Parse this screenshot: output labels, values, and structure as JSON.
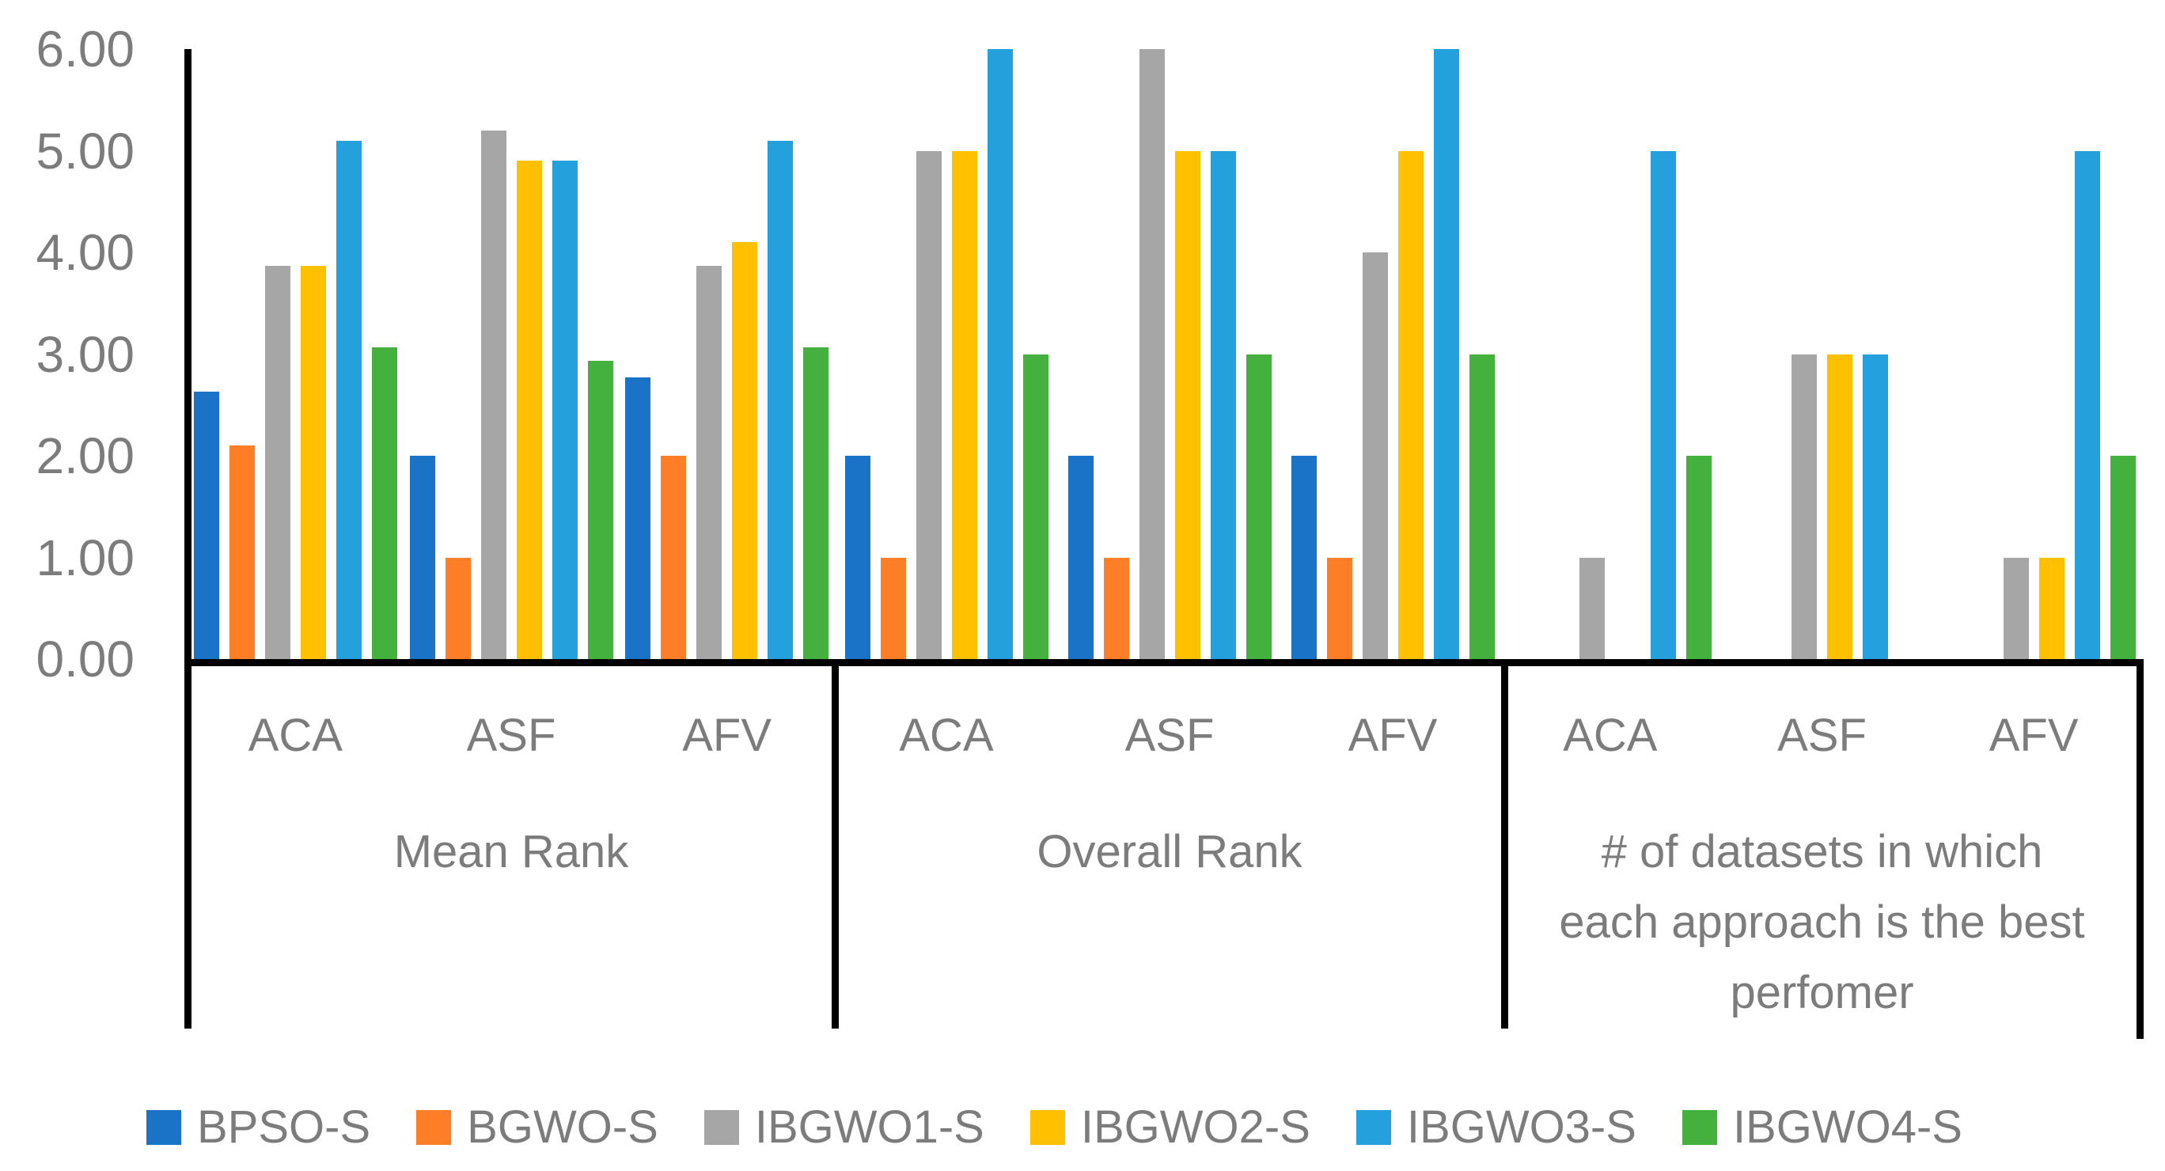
{
  "chart_data": {
    "type": "bar",
    "title": "",
    "grid": false,
    "legend_position": "bottom",
    "y_axis": {
      "min": 0,
      "max": 6,
      "tick_values": [
        6,
        5,
        4,
        3,
        2,
        1,
        0
      ],
      "tick_labels": [
        "6.00",
        "5.00",
        "4.00",
        "3.00",
        "2.00",
        "1.00",
        "0.00"
      ]
    },
    "series_colors": {
      "BPSO-S": "#1b73c8",
      "BGWO-S": "#fd7e26",
      "IBGWO1-S": "#a6a6a6",
      "IBGWO2-S": "#ffc000",
      "IBGWO3-S": "#24a0dc",
      "IBGWO4-S": "#44b13e"
    },
    "legend": [
      {
        "label": "BPSO-S",
        "color": "#1b73c8"
      },
      {
        "label": "BGWO-S",
        "color": "#fd7e26"
      },
      {
        "label": "IBGWO1-S",
        "color": "#a6a6a6"
      },
      {
        "label": "IBGWO2-S",
        "color": "#ffc000"
      },
      {
        "label": "IBGWO3-S",
        "color": "#24a0dc"
      },
      {
        "label": "IBGWO4-S",
        "color": "#44b13e"
      }
    ],
    "panels": [
      {
        "group_label": "Mean Rank",
        "caption_lines": [
          "Mean Rank"
        ],
        "categories": [
          "ACA",
          "ASF",
          "AFV"
        ],
        "series": [
          {
            "name": "BPSO-S",
            "values": [
              2.63,
              2.0,
              2.77
            ]
          },
          {
            "name": "BGWO-S",
            "values": [
              2.1,
              1.0,
              2.0
            ]
          },
          {
            "name": "IBGWO1-S",
            "values": [
              3.87,
              5.2,
              3.87
            ]
          },
          {
            "name": "IBGWO2-S",
            "values": [
              3.87,
              4.9,
              4.1
            ]
          },
          {
            "name": "IBGWO3-S",
            "values": [
              5.1,
              4.9,
              5.1
            ]
          },
          {
            "name": "IBGWO4-S",
            "values": [
              3.07,
              2.93,
              3.07
            ]
          }
        ]
      },
      {
        "group_label": "Overall Rank",
        "caption_lines": [
          "Overall Rank"
        ],
        "categories": [
          "ACA",
          "ASF",
          "AFV"
        ],
        "series": [
          {
            "name": "BPSO-S",
            "values": [
              2,
              2,
              2
            ]
          },
          {
            "name": "BGWO-S",
            "values": [
              1,
              1,
              1
            ]
          },
          {
            "name": "IBGWO1-S",
            "values": [
              5,
              6,
              4
            ]
          },
          {
            "name": "IBGWO2-S",
            "values": [
              5,
              5,
              5
            ]
          },
          {
            "name": "IBGWO3-S",
            "values": [
              6,
              5,
              6
            ]
          },
          {
            "name": "IBGWO4-S",
            "values": [
              3,
              3,
              3
            ]
          }
        ]
      },
      {
        "group_label": "# of datasets in which each approach is the best perfomer",
        "caption_lines": [
          "# of datasets in which",
          "each approach is the best",
          "perfomer"
        ],
        "categories": [
          "ACA",
          "ASF",
          "AFV"
        ],
        "series": [
          {
            "name": "BPSO-S",
            "values": [
              0,
              0,
              0
            ]
          },
          {
            "name": "BGWO-S",
            "values": [
              0,
              0,
              0
            ]
          },
          {
            "name": "IBGWO1-S",
            "values": [
              1,
              3,
              1
            ]
          },
          {
            "name": "IBGWO2-S",
            "values": [
              0,
              3,
              1
            ]
          },
          {
            "name": "IBGWO3-S",
            "values": [
              5,
              3,
              5
            ]
          },
          {
            "name": "IBGWO4-S",
            "values": [
              2,
              0,
              2
            ]
          }
        ]
      }
    ]
  }
}
